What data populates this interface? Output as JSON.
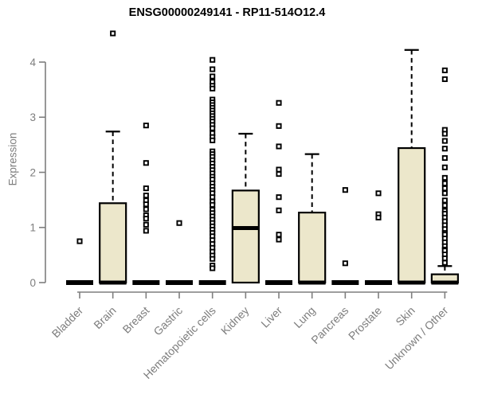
{
  "chart_data": {
    "type": "boxplot",
    "title": "ENSG00000249141 - RP11-514O12.4",
    "ylabel": "Expression",
    "xlabel": "",
    "ylim": [
      0,
      4
    ],
    "yticks": [
      0,
      1,
      2,
      3,
      4
    ],
    "grid": false,
    "legend": "none",
    "categories": [
      "Bladder",
      "Brain",
      "Breast",
      "Gastric",
      "Hematopoietic cells",
      "Kidney",
      "Liver",
      "Lung",
      "Pancreas",
      "Prostate",
      "Skin",
      "Unknown / Other"
    ],
    "boxes": [
      {
        "category": "Bladder",
        "q1": 0,
        "median": 0,
        "q3": 0,
        "whisker_low": 0,
        "whisker_high": 0,
        "outliers": [
          0.75
        ]
      },
      {
        "category": "Brain",
        "q1": 0,
        "median": 0,
        "q3": 1.44,
        "whisker_low": 0,
        "whisker_high": 2.74,
        "outliers": [
          4.52
        ]
      },
      {
        "category": "Breast",
        "q1": 0,
        "median": 0,
        "q3": 0,
        "whisker_low": 0,
        "whisker_high": 0,
        "outliers": [
          2.85,
          2.17,
          1.71,
          1.58,
          1.49,
          1.42,
          1.33,
          1.22,
          1.16,
          1.05,
          0.94
        ]
      },
      {
        "category": "Gastric",
        "q1": 0,
        "median": 0,
        "q3": 0,
        "whisker_low": 0,
        "whisker_high": 0,
        "outliers": [
          1.08
        ]
      },
      {
        "category": "Hematopoietic cells",
        "q1": 0,
        "median": 0,
        "q3": 0,
        "whisker_low": 0,
        "whisker_high": 0,
        "outliers": [
          4.04,
          3.87,
          3.74,
          3.64,
          3.57,
          3.52,
          3.32,
          3.27,
          3.22,
          3.17,
          3.12,
          3.07,
          3.02,
          2.97,
          2.92,
          2.86,
          2.8,
          2.71,
          2.64,
          2.58,
          2.38,
          2.33,
          2.28,
          2.22,
          2.16,
          2.1,
          2.04,
          1.98,
          1.92,
          1.87,
          1.8,
          1.74,
          1.68,
          1.62,
          1.55,
          1.47,
          1.41,
          1.32,
          1.26,
          1.2,
          1.14,
          1.08,
          1.02,
          0.96,
          0.9,
          0.84,
          0.77,
          0.7,
          0.63,
          0.56,
          0.49,
          0.43,
          0.31,
          0.26
        ]
      },
      {
        "category": "Kidney",
        "q1": 0,
        "median": 0.99,
        "q3": 1.67,
        "whisker_low": 0,
        "whisker_high": 2.7,
        "outliers": []
      },
      {
        "category": "Liver",
        "q1": 0,
        "median": 0,
        "q3": 0,
        "whisker_low": 0,
        "whisker_high": 0,
        "outliers": [
          3.26,
          2.84,
          2.47,
          2.05,
          1.97,
          1.55,
          1.31,
          0.87,
          0.78
        ]
      },
      {
        "category": "Lung",
        "q1": 0,
        "median": 0,
        "q3": 1.27,
        "whisker_low": 0,
        "whisker_high": 2.33,
        "outliers": []
      },
      {
        "category": "Pancreas",
        "q1": 0,
        "median": 0,
        "q3": 0,
        "whisker_low": 0,
        "whisker_high": 0,
        "outliers": [
          1.68,
          0.35
        ]
      },
      {
        "category": "Prostate",
        "q1": 0,
        "median": 0,
        "q3": 0,
        "whisker_low": 0,
        "whisker_high": 0,
        "outliers": [
          1.62,
          1.24,
          1.18
        ]
      },
      {
        "category": "Skin",
        "q1": 0,
        "median": 0,
        "q3": 2.44,
        "whisker_low": 0,
        "whisker_high": 4.22,
        "outliers": []
      },
      {
        "category": "Unknown / Other",
        "q1": 0,
        "median": 0,
        "q3": 0.15,
        "whisker_low": 0,
        "whisker_high": 0.3,
        "outliers": [
          3.85,
          3.69,
          2.77,
          2.7,
          2.57,
          2.43,
          2.26,
          2.09,
          1.9,
          1.8,
          1.71,
          1.62,
          1.49,
          1.4,
          1.3,
          1.25,
          1.18,
          1.11,
          1.04,
          0.97,
          0.9,
          0.87,
          0.8,
          0.73,
          0.66,
          0.6,
          0.58,
          0.51,
          0.44,
          0.36
        ]
      }
    ],
    "colors": {
      "box_fill": "#ece7cb",
      "box_border": "#000000",
      "median": "#000000",
      "whisker": "#000000",
      "outlier_fill": "#ffffff",
      "outlier_border": "#000000",
      "axis": "#7f7f7f",
      "tick_text": "#7d7d7d",
      "title_text": "#000000"
    }
  }
}
